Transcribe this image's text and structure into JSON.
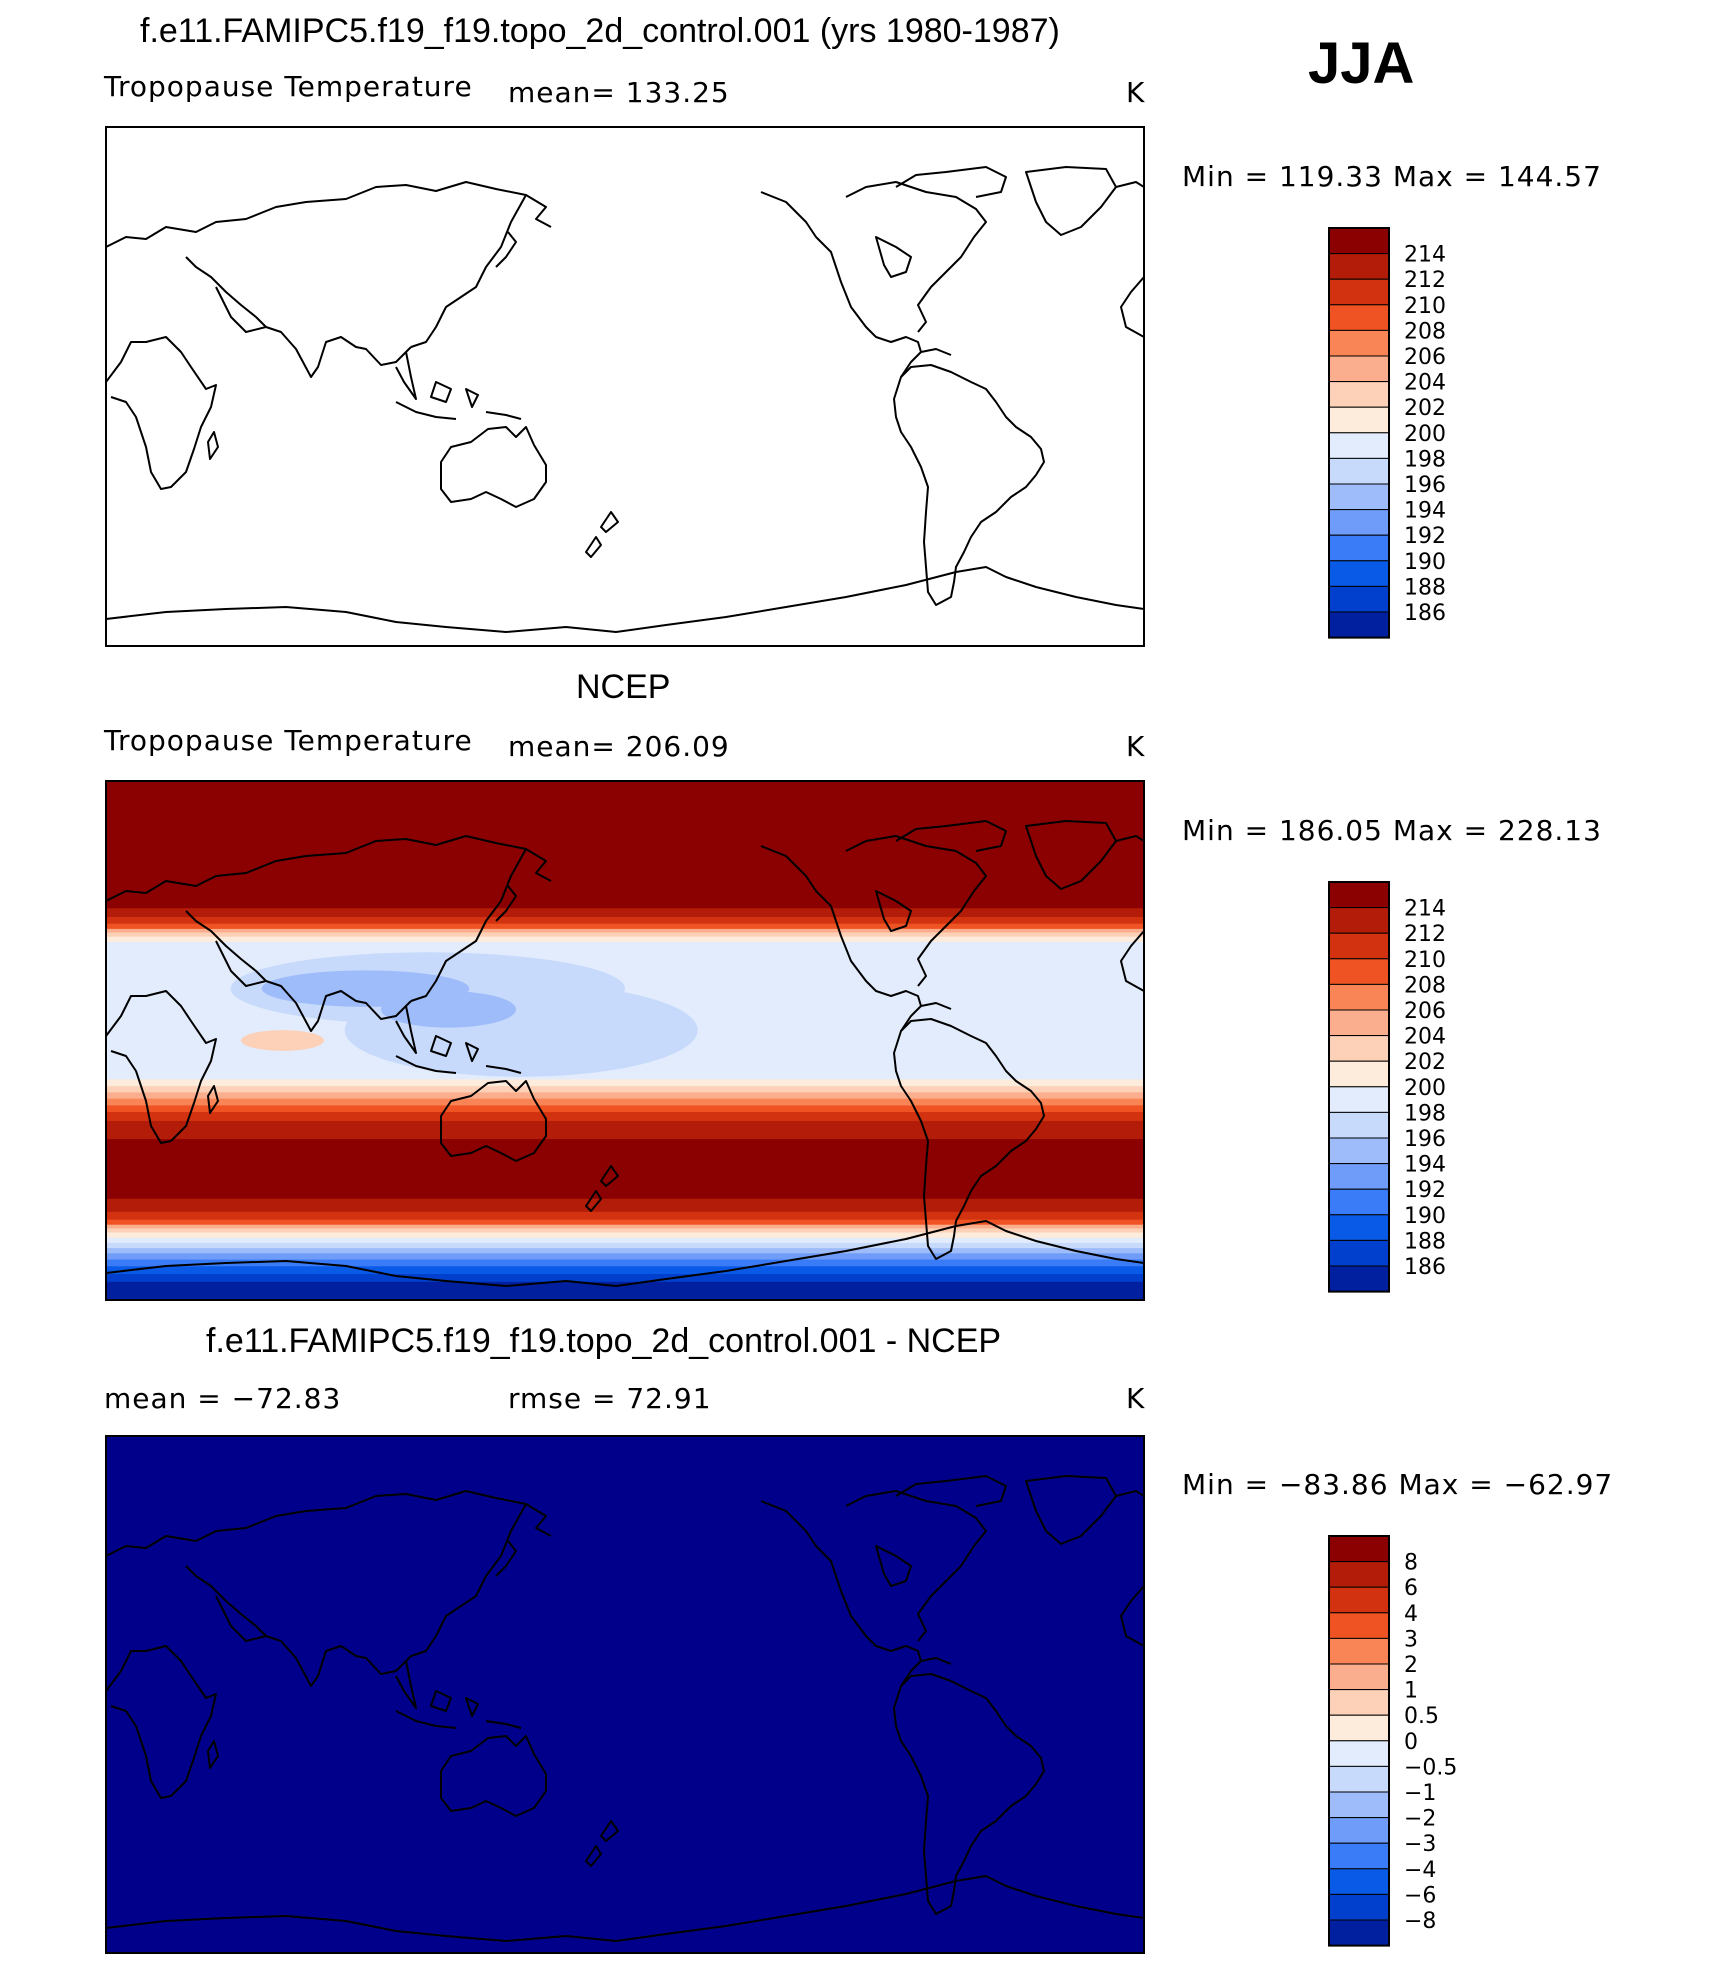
{
  "season": "JJA",
  "units": "K",
  "colors": [
    "#00008b",
    "#0020a0",
    "#0040cc",
    "#0a5ae8",
    "#3a7cf7",
    "#6e9cf8",
    "#9dbcf9",
    "#c8dafb",
    "#e2ecfc",
    "#fdebdb",
    "#fdd0b8",
    "#fbae8d",
    "#f98556",
    "#ef5323",
    "#d2320f",
    "#b21c08",
    "#8b0000"
  ],
  "chart_data": [
    {
      "type": "heatmap",
      "title": "f.e11.FAMIPC5.f19_f19.topo_2d_control.001 (yrs 1980-1987)",
      "subtitle_left": "Tropopause Temperature",
      "subtitle_mid": "mean=  133.25",
      "units": "K",
      "minmax": "Min  =  119.33  Max  =  144.57",
      "min": 119.33,
      "max": 144.57,
      "mean": 133.25,
      "colorbar_levels": [
        "214",
        "212",
        "210",
        "208",
        "206",
        "204",
        "202",
        "200",
        "198",
        "196",
        "194",
        "192",
        "190",
        "188",
        "186"
      ],
      "field": "model"
    },
    {
      "type": "heatmap",
      "title": "NCEP",
      "subtitle_left": "Tropopause Temperature",
      "subtitle_mid": "mean=  206.09",
      "units": "K",
      "minmax": "Min  =  186.05  Max  =  228.13",
      "min": 186.05,
      "max": 228.13,
      "mean": 206.09,
      "colorbar_levels": [
        "214",
        "212",
        "210",
        "208",
        "206",
        "204",
        "202",
        "200",
        "198",
        "196",
        "194",
        "192",
        "190",
        "188",
        "186"
      ],
      "field": "ncep"
    },
    {
      "type": "heatmap",
      "title": "f.e11.FAMIPC5.f19_f19.topo_2d_control.001 - NCEP",
      "subtitle_left": "mean  =  −72.83",
      "subtitle_mid": "rmse  =    72.91",
      "units": "K",
      "minmax": "Min  =  −83.86  Max  =  −62.97",
      "min": -83.86,
      "max": -62.97,
      "mean": -72.83,
      "rmse": 72.91,
      "colorbar_levels": [
        "8",
        "6",
        "4",
        "3",
        "2",
        "1",
        "0.5",
        "0",
        "−0.5",
        "−1",
        "−2",
        "−3",
        "−4",
        "−6",
        "−8"
      ],
      "field": "diff"
    }
  ]
}
